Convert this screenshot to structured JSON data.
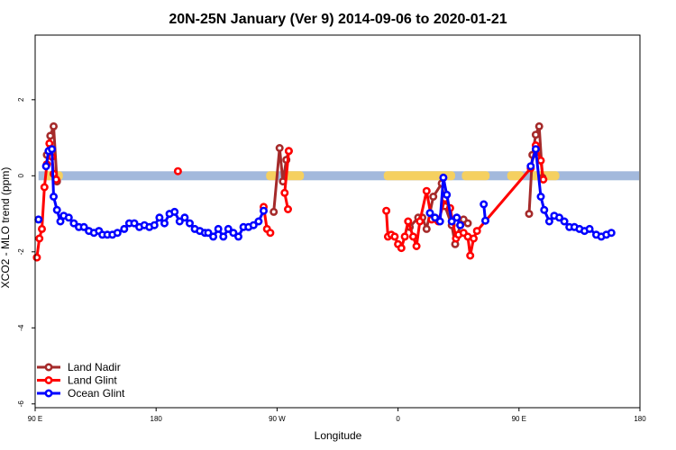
{
  "chart_data": {
    "type": "line",
    "title": "20N-25N January (Ver 9)   2014-09-06 to 2020-01-21",
    "xlabel": "Longitude",
    "ylabel": "XCO2 - MLO trend (ppm)",
    "xlim": [
      90,
      450
    ],
    "ylim": [
      -6.1,
      3.7
    ],
    "x_ticks": [
      {
        "value": 90,
        "label": "90 E"
      },
      {
        "value": 162,
        "label": "180"
      },
      {
        "value": 234,
        "label": "90 W"
      },
      {
        "value": 306,
        "label": "0"
      },
      {
        "value": 378,
        "label": "90 E"
      },
      {
        "value": 450,
        "label": "180"
      }
    ],
    "y_ticks": [
      {
        "value": -6,
        "label": "-6"
      },
      {
        "value": -4,
        "label": "-4"
      },
      {
        "value": -2,
        "label": "-2"
      },
      {
        "value": 0,
        "label": "0"
      },
      {
        "value": 2,
        "label": "2"
      }
    ],
    "grid": false,
    "legend_position": "bottom-left",
    "colors": {
      "land_nadir": "#a52a2a",
      "land_glint": "#ff0000",
      "ocean_glint": "#0000ff",
      "land_mask": "#f5d060",
      "ocean_mask": "#a3b9dc"
    },
    "land_bands": [
      [
        95.5,
        106.5
      ],
      [
        227.5,
        234.5
      ],
      [
        238,
        250
      ],
      [
        297.5,
        340
      ],
      [
        344,
        360.5
      ],
      [
        371,
        381
      ],
      [
        385,
        402
      ]
    ],
    "series": [
      {
        "name": "Land Nadir",
        "color": "#a52a2a",
        "segments": [
          [
            [
              97,
              0.55
            ],
            [
              99,
              1.05
            ],
            [
              101,
              1.3
            ],
            [
              103,
              -0.15
            ]
          ],
          [
            [
              232,
              -0.95
            ],
            [
              235.5,
              0.73
            ],
            [
              237.5,
              -0.15
            ],
            [
              239.5,
              0.42
            ],
            [
              241,
              0.65
            ]
          ],
          [
            [
              313,
              -1.35
            ],
            [
              318,
              -1.1
            ],
            [
              320.5,
              -1.1
            ],
            [
              323,
              -1.4
            ],
            [
              327,
              -0.55
            ],
            [
              332,
              -0.2
            ],
            [
              334,
              -0.8
            ],
            [
              338,
              -1.3
            ],
            [
              340,
              -1.8
            ],
            [
              343,
              -1.3
            ],
            [
              345,
              -1.15
            ],
            [
              347.5,
              -1.25
            ]
          ],
          [
            [
              384,
              -1.0
            ],
            [
              386,
              0.55
            ],
            [
              388,
              1.08
            ],
            [
              390,
              1.3
            ],
            [
              392,
              -0.05
            ]
          ]
        ]
      },
      {
        "name": "Land Glint",
        "color": "#ff0000",
        "segments": [
          [
            [
              91,
              -2.15
            ],
            [
              92.5,
              -1.65
            ],
            [
              94,
              -1.4
            ],
            [
              95.5,
              -0.3
            ],
            [
              97,
              0.3
            ],
            [
              98.5,
              0.85
            ],
            [
              100,
              0.5
            ],
            [
              101,
              0.05
            ],
            [
              102.5,
              -0.1
            ]
          ],
          [
            [
              175,
              0.12
            ]
          ],
          [
            [
              226,
              -0.82
            ],
            [
              228,
              -1.4
            ],
            [
              230,
              -1.5
            ]
          ],
          [
            [
              241,
              0.65
            ],
            [
              238.5,
              -0.45
            ],
            [
              240.5,
              -0.88
            ]
          ],
          [
            [
              299,
              -0.92
            ],
            [
              300,
              -1.6
            ],
            [
              302,
              -1.55
            ],
            [
              304,
              -1.6
            ],
            [
              306,
              -1.8
            ],
            [
              308,
              -1.9
            ],
            [
              310,
              -1.6
            ],
            [
              312,
              -1.2
            ],
            [
              315,
              -1.6
            ],
            [
              317,
              -1.85
            ],
            [
              319,
              -1.2
            ],
            [
              323,
              -0.4
            ],
            [
              326,
              -1.15
            ],
            [
              330,
              -1.2
            ],
            [
              334,
              -0.6
            ],
            [
              337,
              -0.85
            ],
            [
              340.5,
              -1.65
            ],
            [
              342,
              -1.55
            ],
            [
              345,
              -1.5
            ],
            [
              347.5,
              -1.6
            ],
            [
              349,
              -2.1
            ],
            [
              351,
              -1.65
            ],
            [
              353,
              -1.45
            ],
            [
              385,
              0.2
            ],
            [
              388,
              0.8
            ],
            [
              391,
              0.4
            ],
            [
              392.5,
              -0.1
            ]
          ]
        ]
      },
      {
        "name": "Ocean Glint",
        "color": "#0000ff",
        "segments": [
          [
            [
              92,
              -1.15
            ]
          ],
          [
            [
              96.5,
              0.25
            ],
            [
              98,
              0.65
            ],
            [
              100,
              0.7
            ],
            [
              101,
              -0.55
            ],
            [
              103,
              -0.9
            ],
            [
              105,
              -1.2
            ],
            [
              107,
              -1.05
            ],
            [
              110,
              -1.1
            ],
            [
              113,
              -1.25
            ],
            [
              116,
              -1.35
            ],
            [
              119,
              -1.35
            ],
            [
              122,
              -1.45
            ],
            [
              125,
              -1.5
            ],
            [
              128,
              -1.45
            ],
            [
              130,
              -1.55
            ],
            [
              133,
              -1.55
            ],
            [
              136,
              -1.55
            ],
            [
              139,
              -1.5
            ],
            [
              143,
              -1.4
            ],
            [
              146,
              -1.25
            ],
            [
              149,
              -1.25
            ],
            [
              152,
              -1.35
            ],
            [
              155,
              -1.3
            ],
            [
              158,
              -1.35
            ],
            [
              161,
              -1.3
            ],
            [
              164,
              -1.1
            ],
            [
              167,
              -1.25
            ],
            [
              170,
              -1.0
            ],
            [
              173,
              -0.95
            ],
            [
              176,
              -1.2
            ],
            [
              179,
              -1.1
            ],
            [
              182,
              -1.25
            ],
            [
              185,
              -1.4
            ],
            [
              188,
              -1.45
            ],
            [
              191,
              -1.5
            ],
            [
              193,
              -1.5
            ],
            [
              196,
              -1.6
            ],
            [
              199,
              -1.4
            ],
            [
              202,
              -1.6
            ],
            [
              205,
              -1.4
            ],
            [
              208,
              -1.5
            ],
            [
              211,
              -1.6
            ],
            [
              214,
              -1.35
            ],
            [
              217,
              -1.35
            ],
            [
              220,
              -1.3
            ],
            [
              223,
              -1.2
            ],
            [
              226,
              -0.92
            ]
          ],
          [
            [
              325,
              -0.98
            ],
            [
              328,
              -1.1
            ],
            [
              331,
              -1.2
            ],
            [
              333,
              -0.05
            ],
            [
              335,
              -0.5
            ],
            [
              338,
              -1.2
            ],
            [
              341,
              -1.1
            ],
            [
              343,
              -1.3
            ]
          ],
          [
            [
              357,
              -0.75
            ],
            [
              358,
              -1.18
            ]
          ],
          [
            [
              385,
              0.25
            ],
            [
              388,
              0.7
            ],
            [
              391,
              -0.55
            ],
            [
              393,
              -0.9
            ],
            [
              396,
              -1.2
            ],
            [
              399,
              -1.05
            ],
            [
              402,
              -1.1
            ],
            [
              405,
              -1.2
            ],
            [
              408,
              -1.35
            ],
            [
              411,
              -1.35
            ],
            [
              414,
              -1.4
            ],
            [
              417,
              -1.45
            ],
            [
              420,
              -1.4
            ],
            [
              424,
              -1.55
            ],
            [
              427,
              -1.6
            ],
            [
              430,
              -1.55
            ],
            [
              433,
              -1.5
            ]
          ]
        ]
      }
    ]
  }
}
